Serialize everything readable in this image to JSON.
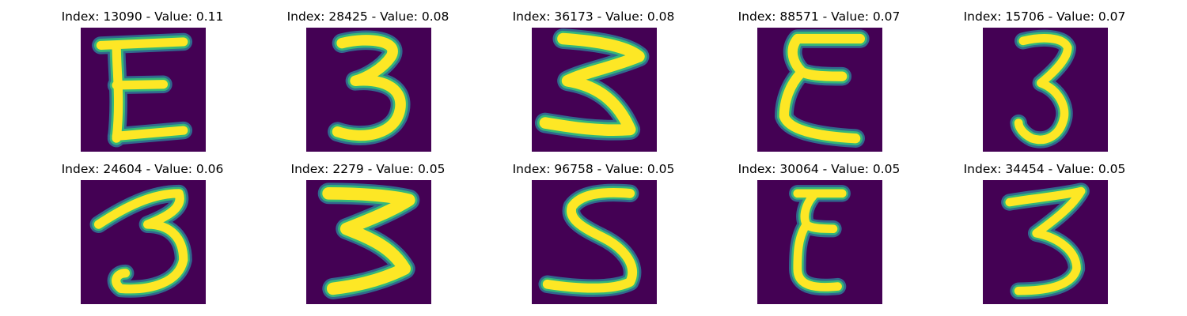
{
  "colors": {
    "background": "#440154",
    "stroke_core": "#fde725",
    "stroke_edge": "#35b779",
    "stroke_fringe": "#31688e"
  },
  "panels": [
    {
      "index": "13090",
      "value": "0.11",
      "title": "Index: 13090 - Value: 0.11",
      "glyph": "E-shape"
    },
    {
      "index": "28425",
      "value": "0.08",
      "title": "Index: 28425 - Value: 0.08",
      "glyph": "3-shape"
    },
    {
      "index": "36173",
      "value": "0.08",
      "title": "Index: 36173 - Value: 0.08",
      "glyph": "z-shape"
    },
    {
      "index": "88571",
      "value": "0.07",
      "title": "Index: 88571 - Value: 0.07",
      "glyph": "E-shape"
    },
    {
      "index": "15706",
      "value": "0.07",
      "title": "Index: 15706 - Value: 0.07",
      "glyph": "3-shape"
    },
    {
      "index": "24604",
      "value": "0.06",
      "title": "Index: 24604 - Value: 0.06",
      "glyph": "3-shape"
    },
    {
      "index": "2279",
      "value": "0.05",
      "title": "Index: 2279 - Value: 0.05",
      "glyph": "z-shape"
    },
    {
      "index": "96758",
      "value": "0.05",
      "title": "Index: 96758 - Value: 0.05",
      "glyph": "S-shape"
    },
    {
      "index": "30064",
      "value": "0.05",
      "title": "Index: 30064 - Value: 0.05",
      "glyph": "E-shape"
    },
    {
      "index": "34454",
      "value": "0.05",
      "title": "Index: 34454 - Value: 0.05",
      "glyph": "3-shape"
    }
  ]
}
